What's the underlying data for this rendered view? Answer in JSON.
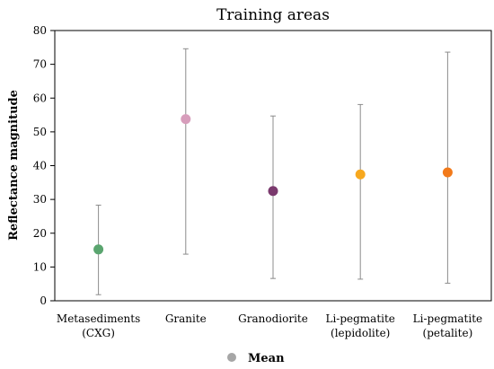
{
  "chart_data": {
    "type": "scatter",
    "title": "Training areas",
    "xlabel": "",
    "ylabel": "Reflectance magnitude",
    "ylim": [
      0,
      80
    ],
    "yticks": [
      0,
      10,
      20,
      30,
      40,
      50,
      60,
      70,
      80
    ],
    "categories": [
      [
        "Metasediments",
        "(CXG)"
      ],
      [
        "Granite"
      ],
      [
        "Granodiorite"
      ],
      [
        "Li-pegmatite",
        "(lepidolite)"
      ],
      [
        "Li-pegmatite",
        "(petalite)"
      ]
    ],
    "mean": [
      15.2,
      53.8,
      32.5,
      37.4,
      38.0
    ],
    "min": [
      1.8,
      13.8,
      6.6,
      6.4,
      5.2
    ],
    "max": [
      28.3,
      74.6,
      54.7,
      58.1,
      73.6
    ],
    "colors": [
      "#5aa56f",
      "#d79dbb",
      "#7b3a6e",
      "#f7a81e",
      "#f27a1a"
    ],
    "legend": {
      "label": "Mean",
      "color": "#a6a6a6",
      "position": "bottom"
    },
    "grid": false
  }
}
